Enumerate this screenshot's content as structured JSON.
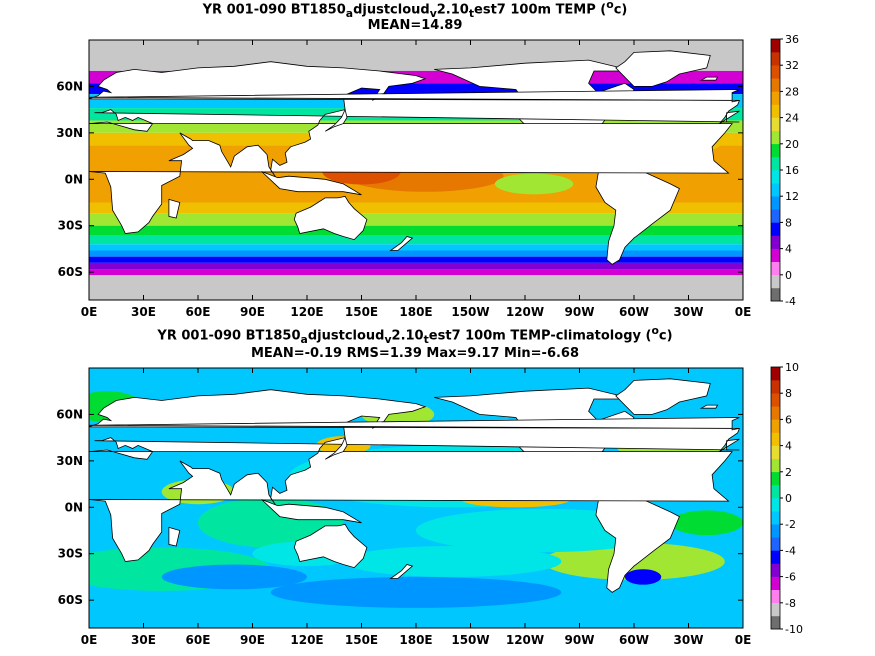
{
  "panels": [
    {
      "title_parts": [
        "YR 001-090 BT1850",
        "a",
        "djustcloud",
        "v",
        "2.10",
        "t",
        "est7 100m TEMP (",
        "o",
        "c)"
      ],
      "stats": "MEAN=14.89",
      "colorbar_ticks": [
        "36",
        "32",
        "28",
        "24",
        "20",
        "16",
        "12",
        "8",
        "4",
        "0",
        "-4"
      ],
      "colorbar_colors": [
        "#6e6e6e",
        "#c8c8c8",
        "#ff7ff0",
        "#d200d2",
        "#8200d2",
        "#0000ff",
        "#1e64ff",
        "#0096ff",
        "#00c8ff",
        "#00e6e6",
        "#00e6a0",
        "#00dc32",
        "#a0e632",
        "#e6dc32",
        "#f0c000",
        "#f0a000",
        "#e67800",
        "#dc5000",
        "#c83200",
        "#a00000"
      ]
    },
    {
      "title_parts": [
        "YR 001-090 BT1850",
        "a",
        "djustcloud",
        "v",
        "2.10",
        "t",
        "est7 100m TEMP-climatology (",
        "o",
        "c)"
      ],
      "stats": "MEAN=-0.19   RMS=1.39   Max=9.17   Min=-6.68",
      "colorbar_ticks": [
        "10",
        "8",
        "6",
        "4",
        "2",
        "0",
        "-2",
        "-4",
        "-6",
        "-8",
        "-10"
      ],
      "colorbar_colors": [
        "#6e6e6e",
        "#c8c8c8",
        "#ff7ff0",
        "#d200d2",
        "#8200d2",
        "#0000ff",
        "#1e64ff",
        "#0096ff",
        "#00c8ff",
        "#00e6e6",
        "#00e6a0",
        "#00dc32",
        "#a0e632",
        "#e6dc32",
        "#f0c000",
        "#f0a000",
        "#e67800",
        "#dc5000",
        "#c83200",
        "#a00000"
      ]
    }
  ],
  "chart_data": [
    {
      "type": "heatmap",
      "title": "YR 001-090 BT1850_adjustcloud_v2.10_test7 100m TEMP (oc)",
      "subtitle": "MEAN=14.89",
      "x_tick_labels": [
        "0E",
        "30E",
        "60E",
        "90E",
        "120E",
        "150E",
        "180E",
        "150W",
        "120W",
        "90W",
        "60W",
        "30W",
        "0E"
      ],
      "y_tick_labels": [
        "60N",
        "30N",
        "0N",
        "30S",
        "60S"
      ],
      "colorbar_range": [
        -4,
        36
      ],
      "mean": 14.89
    },
    {
      "type": "heatmap",
      "title": "YR 001-090 BT1850_adjustcloud_v2.10_test7 100m TEMP-climatology (oc)",
      "subtitle": "MEAN=-0.19 RMS=1.39 Max=9.17 Min=-6.68",
      "x_tick_labels": [
        "0E",
        "30E",
        "60E",
        "90E",
        "120E",
        "150E",
        "180E",
        "150W",
        "120W",
        "90W",
        "60W",
        "30W",
        "0E"
      ],
      "y_tick_labels": [
        "60N",
        "30N",
        "0N",
        "30S",
        "60S"
      ],
      "colorbar_range": [
        -10,
        10
      ],
      "mean": -0.19,
      "rms": 1.39,
      "max": 9.17,
      "min": -6.68
    }
  ]
}
